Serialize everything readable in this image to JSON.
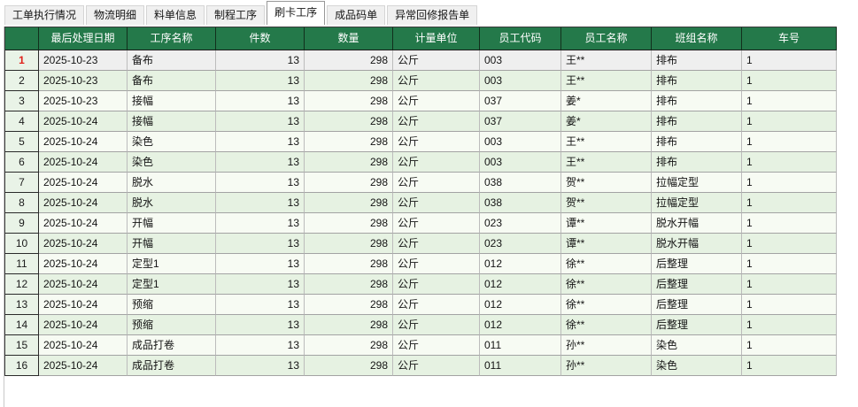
{
  "tabs": [
    {
      "label": "工单执行情况",
      "active": false
    },
    {
      "label": "物流明细",
      "active": false
    },
    {
      "label": "料单信息",
      "active": false
    },
    {
      "label": "制程工序",
      "active": false
    },
    {
      "label": "刷卡工序",
      "active": true
    },
    {
      "label": "成品码单",
      "active": false
    },
    {
      "label": "异常回修报告单",
      "active": false
    }
  ],
  "grid": {
    "columns": [
      {
        "key": "date",
        "label": "最后处理日期",
        "width": 100,
        "align": "left"
      },
      {
        "key": "process",
        "label": "工序名称",
        "width": 100,
        "align": "left"
      },
      {
        "key": "pieces",
        "label": "件数",
        "width": 100,
        "align": "right"
      },
      {
        "key": "qty",
        "label": "数量",
        "width": 100,
        "align": "right"
      },
      {
        "key": "unit",
        "label": "计量单位",
        "width": 98,
        "align": "left"
      },
      {
        "key": "emp_code",
        "label": "员工代码",
        "width": 92,
        "align": "left"
      },
      {
        "key": "emp_name",
        "label": "员工名称",
        "width": 102,
        "align": "left"
      },
      {
        "key": "team",
        "label": "班组名称",
        "width": 102,
        "align": "left"
      },
      {
        "key": "vehicle",
        "label": "车号",
        "width": 107,
        "align": "left"
      }
    ],
    "selected_row": 1,
    "rows": [
      {
        "num": 1,
        "date": "2025-10-23",
        "process": "备布",
        "pieces": "13",
        "qty": "298",
        "unit": "公斤",
        "emp_code": "003",
        "emp_name": "王**",
        "team": "排布",
        "vehicle": "1"
      },
      {
        "num": 2,
        "date": "2025-10-23",
        "process": "备布",
        "pieces": "13",
        "qty": "298",
        "unit": "公斤",
        "emp_code": "003",
        "emp_name": "王**",
        "team": "排布",
        "vehicle": "1"
      },
      {
        "num": 3,
        "date": "2025-10-23",
        "process": "接幅",
        "pieces": "13",
        "qty": "298",
        "unit": "公斤",
        "emp_code": "037",
        "emp_name": "姜*",
        "team": "排布",
        "vehicle": "1"
      },
      {
        "num": 4,
        "date": "2025-10-24",
        "process": "接幅",
        "pieces": "13",
        "qty": "298",
        "unit": "公斤",
        "emp_code": "037",
        "emp_name": "姜*",
        "team": "排布",
        "vehicle": "1"
      },
      {
        "num": 5,
        "date": "2025-10-24",
        "process": "染色",
        "pieces": "13",
        "qty": "298",
        "unit": "公斤",
        "emp_code": "003",
        "emp_name": "王**",
        "team": "排布",
        "vehicle": "1"
      },
      {
        "num": 6,
        "date": "2025-10-24",
        "process": "染色",
        "pieces": "13",
        "qty": "298",
        "unit": "公斤",
        "emp_code": "003",
        "emp_name": "王**",
        "team": "排布",
        "vehicle": "1"
      },
      {
        "num": 7,
        "date": "2025-10-24",
        "process": "脱水",
        "pieces": "13",
        "qty": "298",
        "unit": "公斤",
        "emp_code": "038",
        "emp_name": "贺**",
        "team": "拉幅定型",
        "vehicle": "1"
      },
      {
        "num": 8,
        "date": "2025-10-24",
        "process": "脱水",
        "pieces": "13",
        "qty": "298",
        "unit": "公斤",
        "emp_code": "038",
        "emp_name": "贺**",
        "team": "拉幅定型",
        "vehicle": "1"
      },
      {
        "num": 9,
        "date": "2025-10-24",
        "process": "开幅",
        "pieces": "13",
        "qty": "298",
        "unit": "公斤",
        "emp_code": "023",
        "emp_name": "谭**",
        "team": "脱水开幅",
        "vehicle": "1"
      },
      {
        "num": 10,
        "date": "2025-10-24",
        "process": "开幅",
        "pieces": "13",
        "qty": "298",
        "unit": "公斤",
        "emp_code": "023",
        "emp_name": "谭**",
        "team": "脱水开幅",
        "vehicle": "1"
      },
      {
        "num": 11,
        "date": "2025-10-24",
        "process": "定型1",
        "pieces": "13",
        "qty": "298",
        "unit": "公斤",
        "emp_code": "012",
        "emp_name": "徐**",
        "team": "后整理",
        "vehicle": "1"
      },
      {
        "num": 12,
        "date": "2025-10-24",
        "process": "定型1",
        "pieces": "13",
        "qty": "298",
        "unit": "公斤",
        "emp_code": "012",
        "emp_name": "徐**",
        "team": "后整理",
        "vehicle": "1"
      },
      {
        "num": 13,
        "date": "2025-10-24",
        "process": "预缩",
        "pieces": "13",
        "qty": "298",
        "unit": "公斤",
        "emp_code": "012",
        "emp_name": "徐**",
        "team": "后整理",
        "vehicle": "1"
      },
      {
        "num": 14,
        "date": "2025-10-24",
        "process": "预缩",
        "pieces": "13",
        "qty": "298",
        "unit": "公斤",
        "emp_code": "012",
        "emp_name": "徐**",
        "team": "后整理",
        "vehicle": "1"
      },
      {
        "num": 15,
        "date": "2025-10-24",
        "process": "成品打卷",
        "pieces": "13",
        "qty": "298",
        "unit": "公斤",
        "emp_code": "011",
        "emp_name": "孙**",
        "team": "染色",
        "vehicle": "1"
      },
      {
        "num": 16,
        "date": "2025-10-24",
        "process": "成品打卷",
        "pieces": "13",
        "qty": "298",
        "unit": "公斤",
        "emp_code": "011",
        "emp_name": "孙**",
        "team": "染色",
        "vehicle": "1"
      }
    ]
  },
  "colors": {
    "header_bg": "#24794a",
    "header_text": "#ffffff",
    "rownum_bg": "#e9f3e7",
    "row_odd": "#f7fbf3",
    "row_even": "#e6f2e2",
    "row_selected": "#efefef",
    "selected_num": "#e0231b"
  }
}
